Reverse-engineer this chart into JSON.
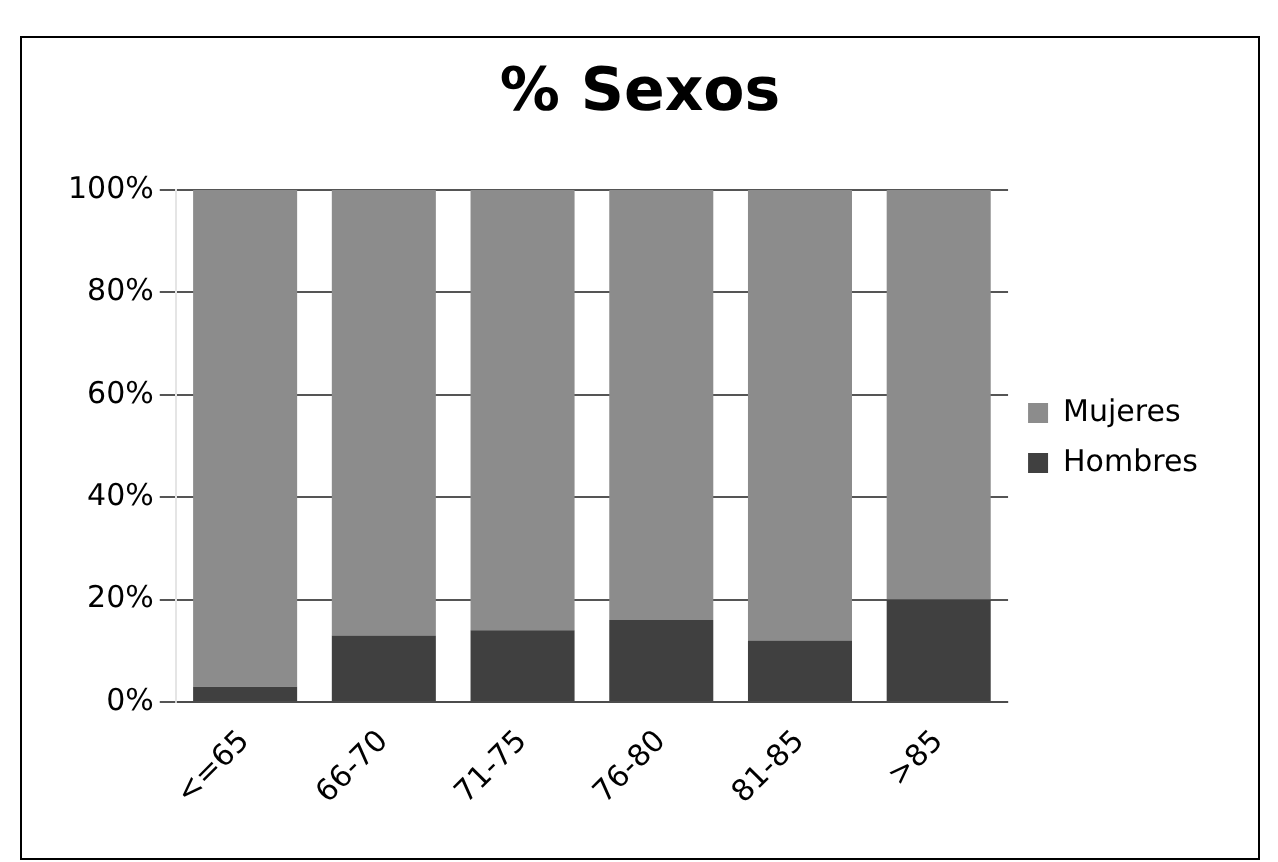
{
  "chart_data": {
    "type": "bar",
    "title": "% Sexos",
    "stacked": true,
    "categories": [
      "<=65",
      "66-70",
      "71-75",
      "76-80",
      "81-85",
      ">85"
    ],
    "series": [
      {
        "name": "Hombres",
        "color": "#404040",
        "values": [
          3,
          13,
          14,
          16,
          12,
          20
        ]
      },
      {
        "name": "Mujeres",
        "color": "#8c8c8c",
        "values": [
          97,
          87,
          86,
          84,
          88,
          80
        ]
      }
    ],
    "ylim": [
      0,
      100
    ],
    "yticks": [
      {
        "value": 0,
        "label": "0%"
      },
      {
        "value": 20,
        "label": "20%"
      },
      {
        "value": 40,
        "label": "40%"
      },
      {
        "value": 60,
        "label": "60%"
      },
      {
        "value": 80,
        "label": "80%"
      },
      {
        "value": 100,
        "label": "100%"
      }
    ],
    "grid": "y",
    "legend": "right"
  }
}
